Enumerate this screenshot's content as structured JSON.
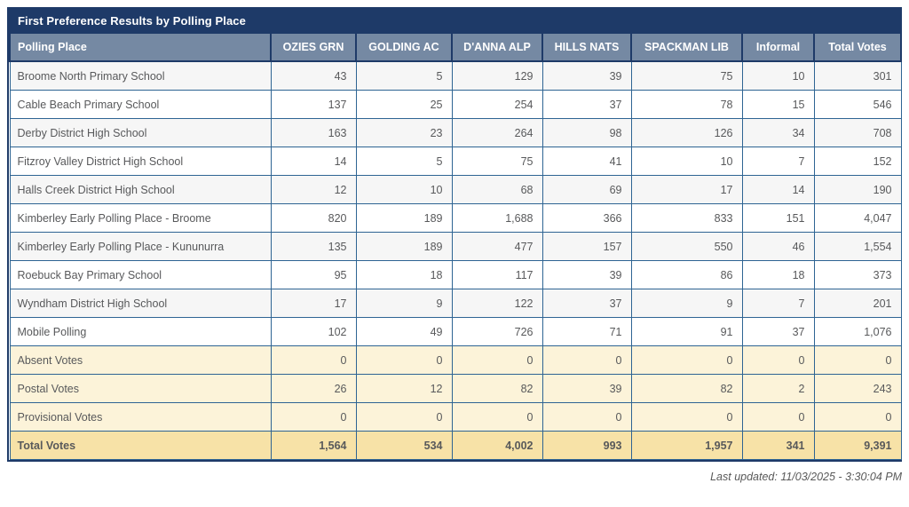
{
  "title": "First Preference Results by Polling Place",
  "columns": [
    "Polling Place",
    "OZIES GRN",
    "GOLDING AC",
    "D'ANNA ALP",
    "HILLS NATS",
    "SPACKMAN LIB",
    "Informal",
    "Total Votes"
  ],
  "rows": [
    {
      "label": "Broome North Primary School",
      "variant": "odd",
      "values": [
        "43",
        "5",
        "129",
        "39",
        "75",
        "10",
        "301"
      ]
    },
    {
      "label": "Cable Beach Primary School",
      "variant": "even",
      "values": [
        "137",
        "25",
        "254",
        "37",
        "78",
        "15",
        "546"
      ]
    },
    {
      "label": "Derby District High School",
      "variant": "odd",
      "values": [
        "163",
        "23",
        "264",
        "98",
        "126",
        "34",
        "708"
      ]
    },
    {
      "label": "Fitzroy Valley District High School",
      "variant": "even",
      "values": [
        "14",
        "5",
        "75",
        "41",
        "10",
        "7",
        "152"
      ]
    },
    {
      "label": "Halls Creek District High School",
      "variant": "odd",
      "values": [
        "12",
        "10",
        "68",
        "69",
        "17",
        "14",
        "190"
      ]
    },
    {
      "label": "Kimberley Early Polling Place - Broome",
      "variant": "even",
      "values": [
        "820",
        "189",
        "1,688",
        "366",
        "833",
        "151",
        "4,047"
      ]
    },
    {
      "label": "Kimberley Early Polling Place - Kununurra",
      "variant": "odd",
      "values": [
        "135",
        "189",
        "477",
        "157",
        "550",
        "46",
        "1,554"
      ]
    },
    {
      "label": "Roebuck Bay Primary School",
      "variant": "even",
      "values": [
        "95",
        "18",
        "117",
        "39",
        "86",
        "18",
        "373"
      ]
    },
    {
      "label": "Wyndham District High School",
      "variant": "odd",
      "values": [
        "17",
        "9",
        "122",
        "37",
        "9",
        "7",
        "201"
      ]
    },
    {
      "label": "Mobile Polling",
      "variant": "even",
      "values": [
        "102",
        "49",
        "726",
        "71",
        "91",
        "37",
        "1,076"
      ]
    },
    {
      "label": "Absent Votes",
      "variant": "special",
      "values": [
        "0",
        "0",
        "0",
        "0",
        "0",
        "0",
        "0"
      ]
    },
    {
      "label": "Postal Votes",
      "variant": "special",
      "values": [
        "26",
        "12",
        "82",
        "39",
        "82",
        "2",
        "243"
      ]
    },
    {
      "label": "Provisional Votes",
      "variant": "special",
      "values": [
        "0",
        "0",
        "0",
        "0",
        "0",
        "0",
        "0"
      ]
    },
    {
      "label": "Total Votes",
      "variant": "total",
      "values": [
        "1,564",
        "534",
        "4,002",
        "993",
        "1,957",
        "341",
        "9,391"
      ]
    }
  ],
  "footer": {
    "last_updated": "Last updated: 11/03/2025 - 3:30:04 PM"
  },
  "colors": {
    "title_bar": "#1e3a68",
    "header_bg": "#7589a3",
    "grid_line": "#2e6493",
    "stripe_gray": "#f6f6f6",
    "cream_row": "#fcf3d9",
    "total_gold": "#f7e2a7",
    "cell_text": "#58595b"
  }
}
